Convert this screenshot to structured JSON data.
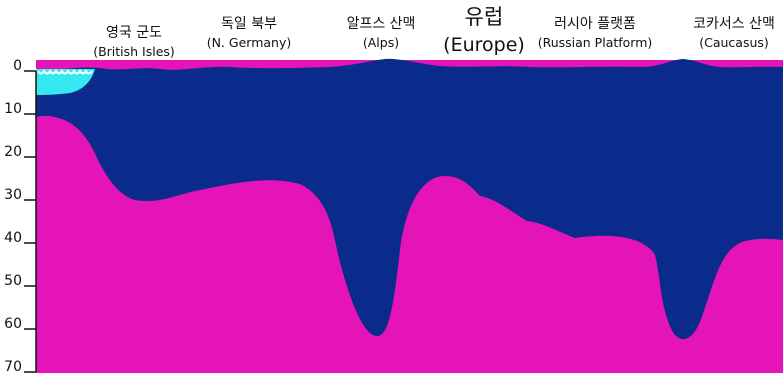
{
  "title": {
    "ko": "유럽",
    "en": "(Europe)"
  },
  "regions": [
    {
      "ko": "영국 군도",
      "en": "(British Isles)"
    },
    {
      "ko": "독일 북부",
      "en": "(N. Germany)"
    },
    {
      "ko": "알프스 산맥",
      "en": "(Alps)"
    },
    {
      "ko": "러시아 플랫폼",
      "en": "(Russian Platform)"
    },
    {
      "ko": "코카서스 산맥",
      "en": "(Caucasus)"
    }
  ],
  "depth_axis": {
    "ticks": [
      "0",
      "10",
      "20",
      "30",
      "40",
      "50",
      "60",
      "70"
    ]
  },
  "colors": {
    "crust": "#0a2a8c",
    "mantle": "#e414b8",
    "sea": "#34e8f0",
    "axis": "#111111"
  }
}
